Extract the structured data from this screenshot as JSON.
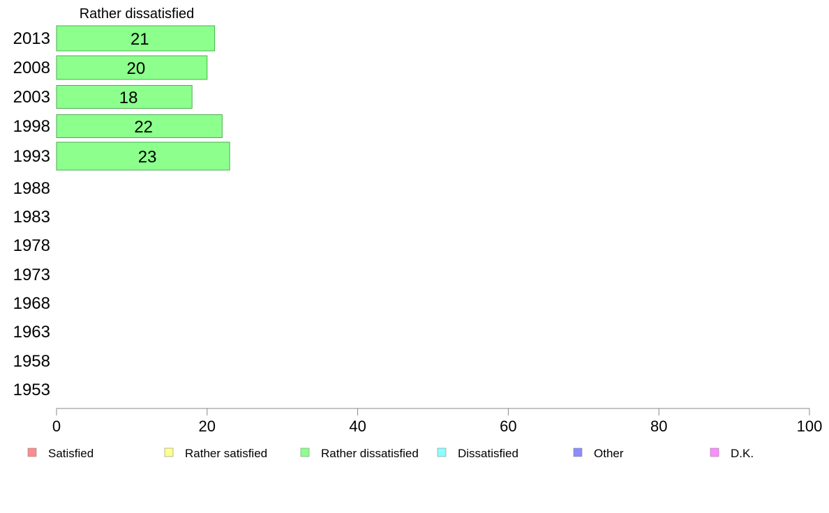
{
  "chart_data": {
    "type": "bar",
    "orientation": "horizontal",
    "title": "Rather dissatisfied",
    "categories": [
      "2013",
      "2008",
      "2003",
      "1998",
      "1993",
      "1988",
      "1983",
      "1978",
      "1973",
      "1968",
      "1963",
      "1958",
      "1953"
    ],
    "series": [
      {
        "name": "Rather dissatisfied",
        "values": [
          21,
          20,
          18,
          22,
          23,
          null,
          null,
          null,
          null,
          null,
          null,
          null,
          null
        ]
      }
    ],
    "data_labels": [
      "21",
      "20",
      "18",
      "22",
      "23"
    ],
    "xlim": [
      0,
      100
    ],
    "xticks": [
      "0",
      "20",
      "40",
      "60",
      "80",
      "100"
    ],
    "grid": false,
    "legend_position": "bottom",
    "legend": [
      {
        "label": "Satisfied",
        "color": "#ff8c8c"
      },
      {
        "label": "Rather satisfied",
        "color": "#ffff8c"
      },
      {
        "label": "Rather dissatisfied",
        "color": "#8cff8c"
      },
      {
        "label": "Dissatisfied",
        "color": "#8cffff"
      },
      {
        "label": "Other",
        "color": "#8c8cff"
      },
      {
        "label": "D.K.",
        "color": "#ff8cff"
      }
    ],
    "bar_color": "#8cff8c",
    "bar_edge_color": "#4caf50"
  }
}
